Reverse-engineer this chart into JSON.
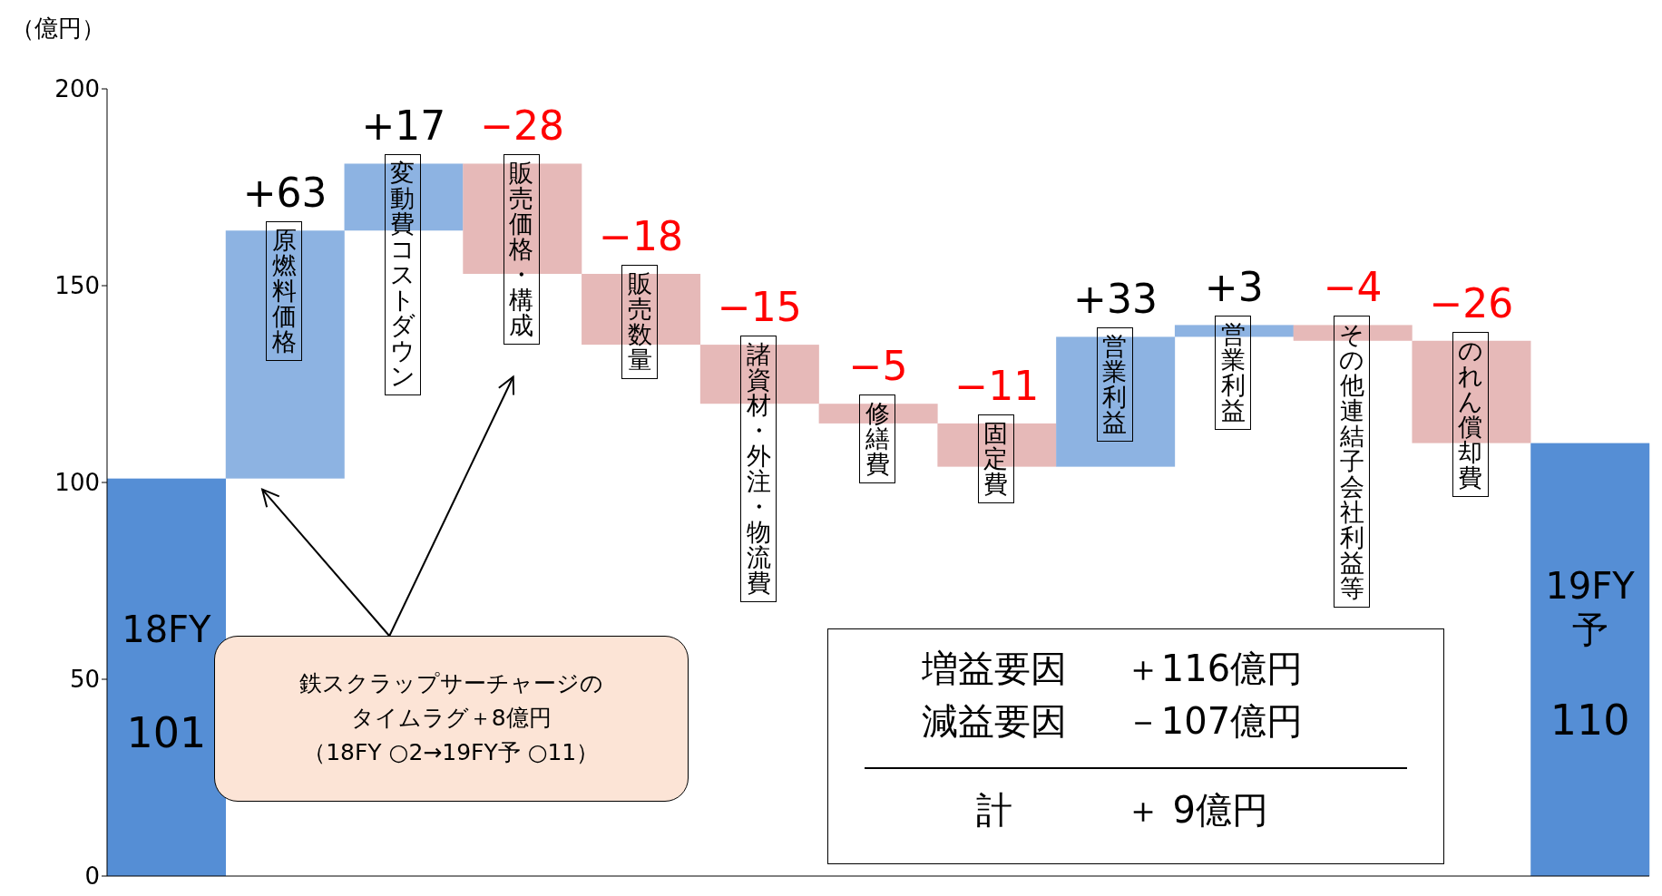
{
  "chart_data": {
    "type": "bar",
    "ylabel": "（億円）",
    "categories": [
      "18FY",
      "原燃料価格",
      "変動費コストダウン",
      "販売価格・構成",
      "販売数量",
      "諸資材・外注・物流費",
      "修繕費",
      "固定費",
      "営業利益",
      "営業利益",
      "その他連結子会社利益等",
      "のれん償却費",
      "19FY予"
    ],
    "values": [
      101,
      63,
      17,
      -28,
      -18,
      -15,
      -5,
      -11,
      33,
      3,
      -4,
      -26,
      110
    ],
    "base": [
      0,
      101,
      164,
      181,
      153,
      135,
      120,
      115,
      104,
      137,
      140,
      136,
      0
    ],
    "colors": [
      "#558ed5",
      "#8db3e2",
      "#8db3e2",
      "#e6b9b8",
      "#e6b9b8",
      "#e6b9b8",
      "#e6b9b8",
      "#e6b9b8",
      "#8db3e2",
      "#8db3e2",
      "#e6b9b8",
      "#e6b9b8",
      "#558ed5"
    ],
    "value_labels": [
      "101",
      "+63",
      "+17",
      "−28",
      "−18",
      "−15",
      "−5",
      "−11",
      "+33",
      "+3",
      "−4",
      "−26",
      "110"
    ],
    "ylim": [
      0,
      200
    ],
    "yticks": [
      0,
      50,
      100,
      150,
      200
    ],
    "annotations": [
      "鉄スクラップサーチャージのタイムラグ＋8億円",
      "（18FY ○2→19FY予 ○11）",
      "増益要因",
      "＋116億円",
      "減益要因",
      "－107億円",
      "計",
      "＋ 9億円"
    ]
  }
}
